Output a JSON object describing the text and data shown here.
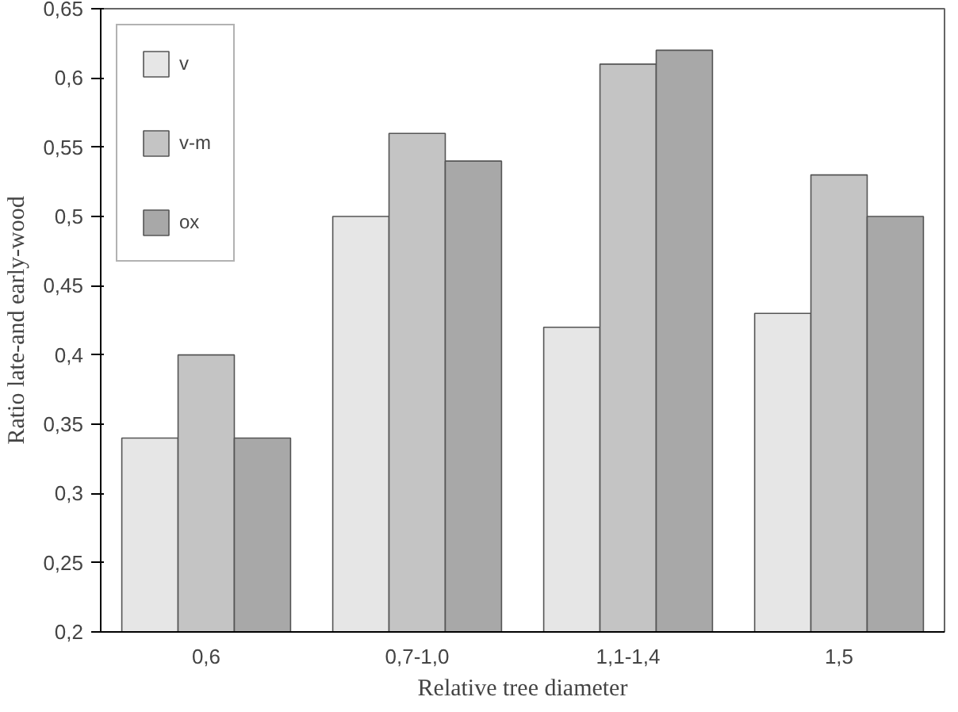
{
  "chart_data": {
    "type": "bar",
    "xlabel": "Relative tree diameter",
    "ylabel": "Ratio late-and early-wood",
    "categories": [
      "0,6",
      "0,7-1,0",
      "1,1-1,4",
      "1,5"
    ],
    "series": [
      {
        "name": "v",
        "color": "#e6e6e6",
        "values": [
          0.34,
          0.5,
          0.42,
          0.43
        ]
      },
      {
        "name": "v-m",
        "color": "#c4c4c4",
        "values": [
          0.4,
          0.56,
          0.61,
          0.53
        ]
      },
      {
        "name": "ox",
        "color": "#a8a8a8",
        "values": [
          0.34,
          0.54,
          0.62,
          0.5
        ]
      }
    ],
    "ylim": [
      0.2,
      0.65
    ],
    "yticks": [
      {
        "value": 0.2,
        "label": "0,2"
      },
      {
        "value": 0.25,
        "label": "0,25"
      },
      {
        "value": 0.3,
        "label": "0,3"
      },
      {
        "value": 0.35,
        "label": "0,35"
      },
      {
        "value": 0.4,
        "label": "0,4"
      },
      {
        "value": 0.45,
        "label": "0,45"
      },
      {
        "value": 0.5,
        "label": "0,5"
      },
      {
        "value": 0.55,
        "label": "0,55"
      },
      {
        "value": 0.6,
        "label": "0,6"
      },
      {
        "value": 0.65,
        "label": "0,65"
      }
    ],
    "grid": false,
    "legend": "top left"
  }
}
